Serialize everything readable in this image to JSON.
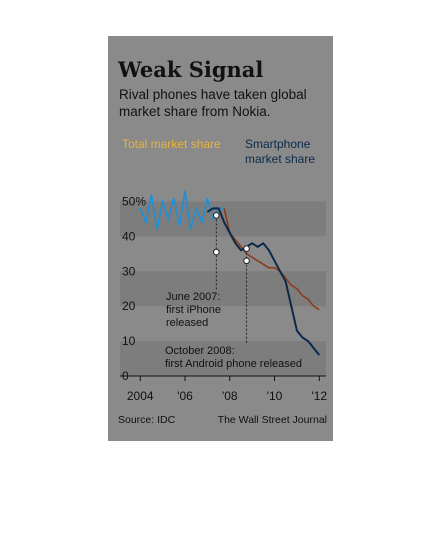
{
  "header": {
    "title": "Weak Signal",
    "subtitle": "Rival phones have taken global market share from Nokia."
  },
  "footer": {
    "source": "Source: IDC",
    "credit": "The Wall Street Journal"
  },
  "colors": {
    "total": "#1f8fd6",
    "total_legend": "#e8b43a",
    "smartphone": "#0b2a4a",
    "overlap": "#8a3c1a",
    "panel": "#8a8a8a",
    "band": "#7d7d7d"
  },
  "chart_data": {
    "type": "line",
    "title": "Weak Signal",
    "subtitle": "Rival phones have taken global market share from Nokia.",
    "xlabel": "",
    "ylabel": "",
    "xlim": [
      2003.9,
      2012.3
    ],
    "ylim": [
      0,
      55
    ],
    "x_ticks": [
      {
        "value": 2004,
        "label": "2004"
      },
      {
        "value": 2006,
        "label": "'06"
      },
      {
        "value": 2008,
        "label": "'08"
      },
      {
        "value": 2010,
        "label": "'10"
      },
      {
        "value": 2012,
        "label": "'12"
      }
    ],
    "y_ticks": [
      {
        "value": 0,
        "label": "0"
      },
      {
        "value": 10,
        "label": "10"
      },
      {
        "value": 20,
        "label": "20"
      },
      {
        "value": 30,
        "label": "30"
      },
      {
        "value": 40,
        "label": "40"
      },
      {
        "value": 50,
        "label": "50%"
      }
    ],
    "grid": "horizontal bands",
    "series": [
      {
        "name": "Total market share",
        "x": [
          2004.0,
          2004.25,
          2004.5,
          2004.75,
          2005.0,
          2005.25,
          2005.5,
          2005.75,
          2006.0,
          2006.25,
          2006.5,
          2006.75,
          2007.0,
          2007.25,
          2007.5,
          2007.75,
          2008.0,
          2008.25,
          2008.5,
          2008.75,
          2009.0,
          2009.25,
          2009.5,
          2009.75,
          2010.0,
          2010.25,
          2010.5,
          2010.75,
          2011.0,
          2011.25,
          2011.5,
          2011.75,
          2012.0
        ],
        "y": [
          48,
          44,
          52,
          42,
          50,
          45,
          51,
          43,
          53,
          42,
          48,
          44,
          51,
          45,
          48,
          48,
          41,
          39,
          37,
          35,
          34,
          33,
          32,
          31,
          31,
          30,
          28,
          26,
          25,
          23,
          22,
          20,
          19
        ]
      },
      {
        "name": "Smartphone market share",
        "x": [
          2007.0,
          2007.25,
          2007.5,
          2007.75,
          2008.0,
          2008.25,
          2008.5,
          2008.75,
          2009.0,
          2009.25,
          2009.5,
          2009.75,
          2010.0,
          2010.25,
          2010.5,
          2010.75,
          2011.0,
          2011.25,
          2011.5,
          2011.75,
          2012.0
        ],
        "y": [
          47,
          48,
          48,
          44,
          41,
          38,
          36,
          37,
          38,
          37,
          38,
          36,
          33,
          30,
          27,
          20,
          13,
          11,
          10,
          8,
          6
        ]
      }
    ],
    "legend": [
      {
        "label": "Total market share",
        "position": "top-left"
      },
      {
        "label": "Smartphone market share",
        "position": "top-right"
      }
    ],
    "annotations": [
      {
        "x": 2007.4,
        "y_marker": 35.5,
        "y_marker2": 46,
        "text_lines": [
          "June 2007:",
          "first iPhone",
          "released"
        ]
      },
      {
        "x": 2008.75,
        "y_marker": 33,
        "y_marker2": 36.5,
        "text_lines": [
          "October 2008:",
          "first Android phone released"
        ]
      }
    ]
  }
}
